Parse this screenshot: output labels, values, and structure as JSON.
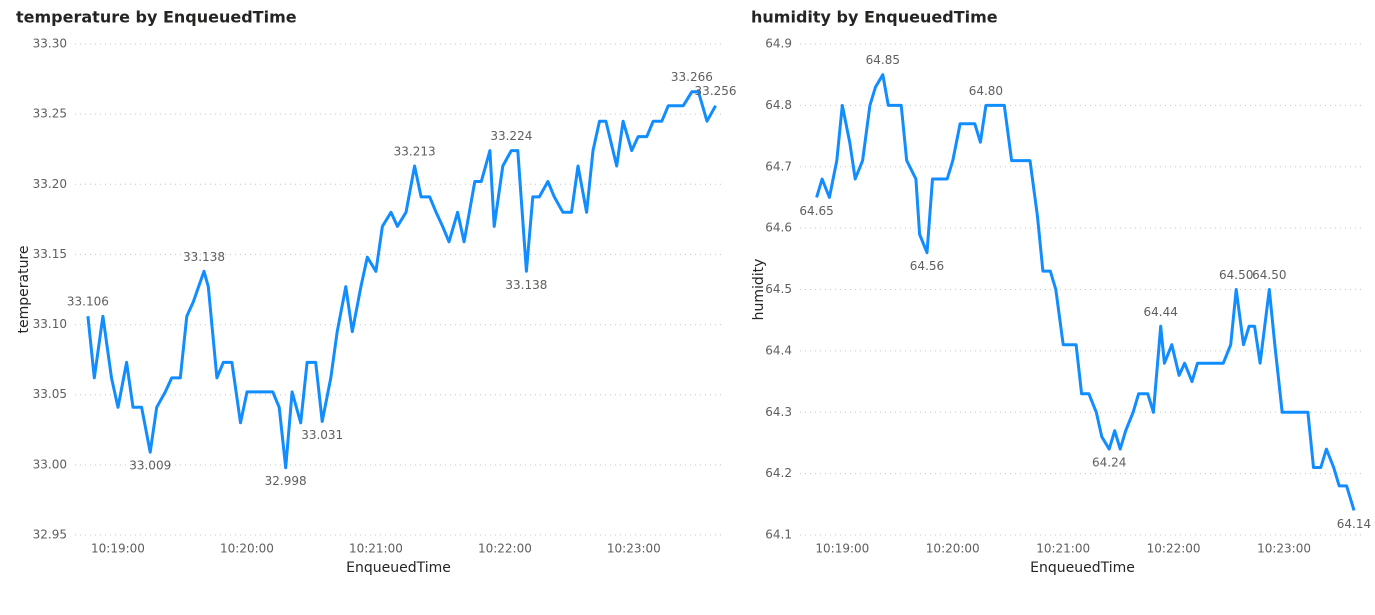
{
  "chart_data": [
    {
      "type": "line",
      "title": "temperature by EnqueuedTime",
      "x_label": "EnqueuedTime",
      "y_label": "temperature",
      "color": "#118DFF",
      "grid": true,
      "x": [
        "10:18:46",
        "10:18:49",
        "10:18:53",
        "10:18:57",
        "10:19:00",
        "10:19:04",
        "10:19:07",
        "10:19:11",
        "10:19:15",
        "10:19:18",
        "10:19:22",
        "10:19:25",
        "10:19:29",
        "10:19:32",
        "10:19:35",
        "10:19:40",
        "10:19:42",
        "10:19:46",
        "10:19:49",
        "10:19:53",
        "10:19:57",
        "10:20:00",
        "10:20:04",
        "10:20:08",
        "10:20:12",
        "10:20:15",
        "10:20:18",
        "10:20:21",
        "10:20:25",
        "10:20:28",
        "10:20:32",
        "10:20:35",
        "10:20:39",
        "10:20:42",
        "10:20:46",
        "10:20:49",
        "10:20:53",
        "10:20:56",
        "10:21:00",
        "10:21:03",
        "10:21:07",
        "10:21:10",
        "10:21:14",
        "10:21:18",
        "10:21:21",
        "10:21:25",
        "10:21:28",
        "10:21:31",
        "10:21:34",
        "10:21:38",
        "10:21:41",
        "10:21:46",
        "10:21:49",
        "10:21:53",
        "10:21:55",
        "10:21:59",
        "10:22:03",
        "10:22:06",
        "10:22:10",
        "10:22:13",
        "10:22:16",
        "10:22:20",
        "10:22:23",
        "10:22:27",
        "10:22:31",
        "10:22:34",
        "10:22:38",
        "10:22:41",
        "10:22:44",
        "10:22:47",
        "10:22:52",
        "10:22:55",
        "10:22:59",
        "10:23:02",
        "10:23:06",
        "10:23:09",
        "10:23:13",
        "10:23:16",
        "10:23:20",
        "10:23:23",
        "10:23:27",
        "10:23:30",
        "10:23:34",
        "10:23:38"
      ],
      "values": [
        33.106,
        33.062,
        33.106,
        33.062,
        33.041,
        33.073,
        33.041,
        33.041,
        33.009,
        33.041,
        33.052,
        33.062,
        33.062,
        33.106,
        33.116,
        33.138,
        33.127,
        33.062,
        33.073,
        33.073,
        33.03,
        33.052,
        33.052,
        33.052,
        33.052,
        33.041,
        32.998,
        33.052,
        33.03,
        33.073,
        33.073,
        33.031,
        33.062,
        33.095,
        33.127,
        33.095,
        33.127,
        33.148,
        33.138,
        33.17,
        33.18,
        33.17,
        33.18,
        33.213,
        33.191,
        33.191,
        33.18,
        33.17,
        33.159,
        33.18,
        33.159,
        33.202,
        33.202,
        33.224,
        33.17,
        33.213,
        33.224,
        33.224,
        33.138,
        33.191,
        33.191,
        33.202,
        33.191,
        33.18,
        33.18,
        33.213,
        33.18,
        33.224,
        33.245,
        33.245,
        33.213,
        33.245,
        33.224,
        33.234,
        33.234,
        33.245,
        33.245,
        33.256,
        33.256,
        33.256,
        33.266,
        33.266,
        33.245,
        33.256
      ],
      "value_labels": [
        "33.106",
        null,
        null,
        null,
        null,
        null,
        null,
        null,
        "33.009",
        null,
        null,
        null,
        null,
        null,
        null,
        "33.138",
        null,
        null,
        null,
        null,
        null,
        null,
        null,
        null,
        null,
        null,
        "32.998",
        null,
        null,
        null,
        null,
        "33.031",
        null,
        null,
        null,
        null,
        null,
        null,
        null,
        null,
        null,
        null,
        null,
        "33.213",
        null,
        null,
        null,
        null,
        null,
        null,
        null,
        null,
        null,
        null,
        null,
        null,
        "33.224",
        null,
        "33.138",
        null,
        null,
        null,
        null,
        null,
        null,
        null,
        null,
        null,
        null,
        null,
        null,
        null,
        null,
        null,
        null,
        null,
        null,
        null,
        null,
        null,
        "33.266",
        null,
        null,
        "33.256"
      ],
      "xlim": [
        "10:18:40",
        "10:23:41"
      ],
      "xticks": [
        "10:19:00",
        "10:20:00",
        "10:21:00",
        "10:22:00",
        "10:23:00"
      ],
      "ylim": [
        32.95,
        33.3
      ],
      "yticks": [
        32.95,
        {
          "value": 33.0,
          "label": "33.00"
        },
        33.05,
        {
          "value": 33.1,
          "label": "33.10"
        },
        33.15,
        {
          "value": 33.2,
          "label": "33.20"
        },
        33.25,
        {
          "value": 33.3,
          "label": "33.30"
        }
      ]
    },
    {
      "type": "line",
      "title": "humidity by EnqueuedTime",
      "x_label": "EnqueuedTime",
      "y_label": "humidity",
      "color": "#118DFF",
      "grid": true,
      "x": [
        "10:18:46",
        "10:18:49",
        "10:18:53",
        "10:18:57",
        "10:19:00",
        "10:19:04",
        "10:19:07",
        "10:19:11",
        "10:19:15",
        "10:19:18",
        "10:19:22",
        "10:19:25",
        "10:19:29",
        "10:19:32",
        "10:19:35",
        "10:19:40",
        "10:19:42",
        "10:19:46",
        "10:19:49",
        "10:19:53",
        "10:19:57",
        "10:20:00",
        "10:20:04",
        "10:20:08",
        "10:20:12",
        "10:20:15",
        "10:20:18",
        "10:20:21",
        "10:20:25",
        "10:20:28",
        "10:20:32",
        "10:20:35",
        "10:20:39",
        "10:20:42",
        "10:20:46",
        "10:20:49",
        "10:20:53",
        "10:20:56",
        "10:21:00",
        "10:21:03",
        "10:21:07",
        "10:21:10",
        "10:21:14",
        "10:21:18",
        "10:21:21",
        "10:21:25",
        "10:21:28",
        "10:21:31",
        "10:21:34",
        "10:21:38",
        "10:21:41",
        "10:21:46",
        "10:21:49",
        "10:21:53",
        "10:21:55",
        "10:21:59",
        "10:22:03",
        "10:22:06",
        "10:22:10",
        "10:22:13",
        "10:22:16",
        "10:22:20",
        "10:22:23",
        "10:22:27",
        "10:22:31",
        "10:22:34",
        "10:22:38",
        "10:22:41",
        "10:22:44",
        "10:22:47",
        "10:22:52",
        "10:22:55",
        "10:22:59",
        "10:23:02",
        "10:23:06",
        "10:23:09",
        "10:23:13",
        "10:23:16",
        "10:23:20",
        "10:23:23",
        "10:23:27",
        "10:23:30",
        "10:23:34",
        "10:23:38"
      ],
      "values": [
        64.65,
        64.68,
        64.65,
        64.71,
        64.8,
        64.74,
        64.68,
        64.71,
        64.8,
        64.83,
        64.85,
        64.8,
        64.8,
        64.8,
        64.71,
        64.68,
        64.59,
        64.56,
        64.68,
        64.68,
        64.68,
        64.71,
        64.77,
        64.77,
        64.77,
        64.74,
        64.8,
        64.8,
        64.8,
        64.8,
        64.71,
        64.71,
        64.71,
        64.71,
        64.62,
        64.53,
        64.53,
        64.5,
        64.41,
        64.41,
        64.41,
        64.33,
        64.33,
        64.3,
        64.26,
        64.24,
        64.27,
        64.24,
        64.27,
        64.3,
        64.33,
        64.33,
        64.3,
        64.44,
        64.38,
        64.41,
        64.36,
        64.38,
        64.35,
        64.38,
        64.38,
        64.38,
        64.38,
        64.38,
        64.41,
        64.5,
        64.41,
        64.44,
        64.44,
        64.38,
        64.5,
        64.41,
        64.3,
        64.3,
        64.3,
        64.3,
        64.3,
        64.21,
        64.21,
        64.24,
        64.21,
        64.18,
        64.18,
        64.14
      ],
      "value_labels": [
        "64.65",
        null,
        null,
        null,
        null,
        null,
        null,
        null,
        null,
        null,
        "64.85",
        null,
        null,
        null,
        null,
        null,
        null,
        "64.56",
        null,
        null,
        null,
        null,
        null,
        null,
        null,
        null,
        "64.80",
        null,
        null,
        null,
        null,
        null,
        null,
        null,
        null,
        null,
        null,
        null,
        null,
        null,
        null,
        null,
        null,
        null,
        null,
        "64.24",
        null,
        null,
        null,
        null,
        null,
        null,
        null,
        "64.44",
        null,
        null,
        null,
        null,
        null,
        null,
        null,
        null,
        null,
        null,
        null,
        "64.50",
        null,
        null,
        null,
        null,
        "64.50",
        null,
        null,
        null,
        null,
        null,
        null,
        null,
        null,
        null,
        null,
        null,
        null,
        "64.14"
      ],
      "xlim": [
        "10:18:37",
        "10:23:44"
      ],
      "xticks": [
        "10:19:00",
        "10:20:00",
        "10:21:00",
        "10:22:00",
        "10:23:00"
      ],
      "ylim": [
        64.1,
        64.9
      ],
      "yticks": [
        64.1,
        64.2,
        64.3,
        64.4,
        64.5,
        64.6,
        64.7,
        64.8,
        64.9
      ]
    }
  ]
}
